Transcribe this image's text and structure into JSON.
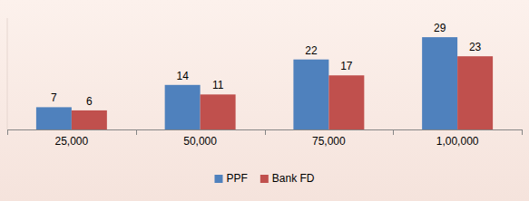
{
  "chart_data": {
    "type": "bar",
    "categories": [
      "25,000",
      "50,000",
      "75,000",
      "1,00,000"
    ],
    "series": [
      {
        "name": "PPF",
        "color": "#4f81bd",
        "values": [
          7,
          14,
          22,
          29
        ]
      },
      {
        "name": "Bank FD",
        "color": "#c0504d",
        "values": [
          6,
          11,
          17,
          23
        ]
      }
    ],
    "ylim": [
      0,
      35
    ],
    "grid": false,
    "legend": "bottom",
    "data_labels": true,
    "tick_labels": "x"
  }
}
